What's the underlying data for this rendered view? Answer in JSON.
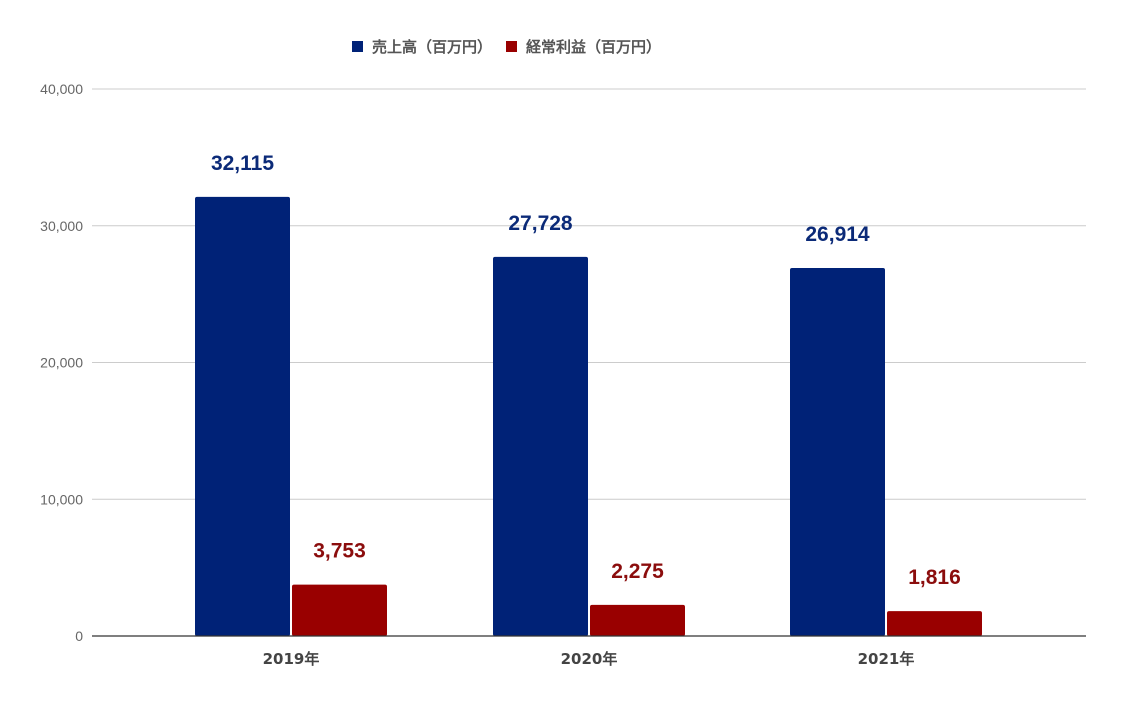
{
  "chart_data": {
    "type": "bar",
    "title": "",
    "xlabel": "",
    "ylabel": "",
    "categories": [
      "2019年",
      "2020年",
      "2021年"
    ],
    "series": [
      {
        "name": "売上高（百万円）",
        "values": [
          32115,
          27728,
          26914
        ],
        "color": "#002277",
        "label_color": "#0b2a78"
      },
      {
        "name": "経常利益（百万円）",
        "values": [
          3753,
          2275,
          1816
        ],
        "color": "#990000",
        "label_color": "#8b0d0d"
      }
    ],
    "data_labels": [
      [
        "32,115",
        "27,728",
        "26,914"
      ],
      [
        "3,753",
        "2,275",
        "1,816"
      ]
    ],
    "ylim": [
      0,
      40000
    ],
    "yticks": [
      0,
      10000,
      20000,
      30000,
      40000
    ],
    "ytick_labels": [
      "0",
      "10,000",
      "20,000",
      "30,000",
      "40,000"
    ],
    "grid": true,
    "legend_position": "top-center"
  },
  "colors": {
    "gridline": "#cccccc",
    "axis": "#333333",
    "tick_label": "#666666",
    "category_label": "#444444"
  }
}
